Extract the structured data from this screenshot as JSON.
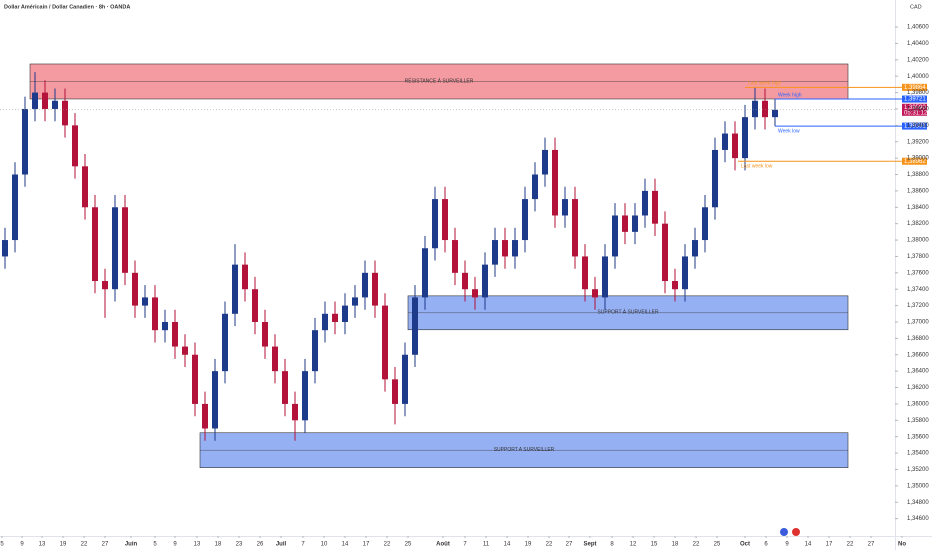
{
  "chart_data": {
    "type": "candlestick",
    "title": "Dollar Américain / Dollar Canadien · 8h · OANDA",
    "currency": "CAD",
    "xlim": [
      0,
      89.5
    ],
    "ylim": [
      1.344,
      1.4093
    ],
    "up_color": "#1e3a8a",
    "down_color": "#b3123a",
    "x": [
      0.5,
      1.5,
      2.5,
      3.5,
      4.5,
      5.5,
      6.5,
      7.5,
      8.5,
      9.5,
      10.5,
      11.5,
      12.5,
      13.5,
      14.5,
      15.5,
      16.5,
      17.5,
      18.5,
      19.5,
      20.5,
      21.5,
      22.5,
      23.5,
      24.5,
      25.5,
      26.5,
      27.5,
      28.5,
      29.5,
      30.5,
      31.5,
      32.5,
      33.5,
      34.5,
      35.5,
      36.5,
      37.5,
      38.5,
      39.5,
      40.5,
      41.5,
      42.5,
      43.5,
      44.5,
      45.5,
      46.5,
      47.5,
      48.5,
      49.5,
      50.5,
      51.5,
      52.5,
      53.5,
      54.5,
      55.5,
      56.5,
      57.5,
      58.5,
      59.5,
      60.5,
      61.5,
      62.5,
      63.5,
      64.5,
      65.5,
      66.5,
      67.5,
      68.5,
      69.5,
      70.5,
      71.5,
      72.5,
      73.5,
      74.5,
      75.5,
      76.5,
      77.5
    ],
    "open": [
      1.378,
      1.38,
      1.388,
      1.396,
      1.398,
      1.396,
      1.397,
      1.394,
      1.389,
      1.384,
      1.375,
      1.374,
      1.384,
      1.376,
      1.372,
      1.373,
      1.369,
      1.37,
      1.367,
      1.366,
      1.36,
      1.357,
      1.364,
      1.371,
      1.377,
      1.374,
      1.37,
      1.367,
      1.364,
      1.36,
      1.358,
      1.364,
      1.369,
      1.371,
      1.37,
      1.372,
      1.373,
      1.376,
      1.372,
      1.363,
      1.36,
      1.366,
      1.373,
      1.379,
      1.385,
      1.38,
      1.376,
      1.374,
      1.373,
      1.377,
      1.38,
      1.378,
      1.38,
      1.385,
      1.388,
      1.391,
      1.383,
      1.385,
      1.378,
      1.374,
      1.373,
      1.378,
      1.383,
      1.381,
      1.383,
      1.386,
      1.382,
      1.375,
      1.374,
      1.378,
      1.38,
      1.384,
      1.391,
      1.393,
      1.39,
      1.395,
      1.397,
      1.395
    ],
    "high": [
      1.3815,
      1.3895,
      1.3975,
      1.4005,
      1.3995,
      1.3985,
      1.3985,
      1.3955,
      1.3905,
      1.3855,
      1.3765,
      1.3855,
      1.3855,
      1.3775,
      1.3745,
      1.3745,
      1.3715,
      1.3715,
      1.3685,
      1.3675,
      1.3615,
      1.3655,
      1.3725,
      1.3795,
      1.3785,
      1.3755,
      1.3715,
      1.3685,
      1.3655,
      1.3615,
      1.3655,
      1.3705,
      1.3725,
      1.3725,
      1.3735,
      1.3745,
      1.3775,
      1.3775,
      1.3735,
      1.3645,
      1.3675,
      1.3745,
      1.3805,
      1.3865,
      1.3865,
      1.3815,
      1.3775,
      1.3755,
      1.3785,
      1.3815,
      1.3815,
      1.3815,
      1.3865,
      1.3895,
      1.3925,
      1.3925,
      1.3865,
      1.3865,
      1.3795,
      1.3755,
      1.3795,
      1.3845,
      1.3845,
      1.3845,
      1.3875,
      1.3875,
      1.3835,
      1.3765,
      1.3795,
      1.3815,
      1.3855,
      1.3925,
      1.3945,
      1.3945,
      1.3965,
      1.3986,
      1.3985,
      1.3972
    ],
    "low": [
      1.3765,
      1.3785,
      1.3865,
      1.3945,
      1.3945,
      1.3945,
      1.3925,
      1.3875,
      1.3825,
      1.3735,
      1.3705,
      1.3725,
      1.3745,
      1.3705,
      1.3705,
      1.3675,
      1.3675,
      1.3655,
      1.3645,
      1.3585,
      1.3555,
      1.3555,
      1.3625,
      1.3695,
      1.3725,
      1.3685,
      1.3655,
      1.3625,
      1.3585,
      1.3555,
      1.3565,
      1.3625,
      1.3675,
      1.3685,
      1.3685,
      1.3705,
      1.3715,
      1.3705,
      1.3615,
      1.3575,
      1.3585,
      1.3645,
      1.3715,
      1.3775,
      1.3785,
      1.3745,
      1.3725,
      1.3715,
      1.3715,
      1.3755,
      1.3765,
      1.3765,
      1.3785,
      1.3835,
      1.3865,
      1.3815,
      1.3815,
      1.3765,
      1.3725,
      1.3715,
      1.3715,
      1.3765,
      1.3795,
      1.3795,
      1.3815,
      1.3805,
      1.3735,
      1.3725,
      1.3725,
      1.3765,
      1.3785,
      1.3825,
      1.3895,
      1.3885,
      1.3885,
      1.3935,
      1.3935,
      1.3939
    ],
    "close": [
      1.38,
      1.388,
      1.396,
      1.398,
      1.396,
      1.397,
      1.394,
      1.389,
      1.384,
      1.375,
      1.374,
      1.384,
      1.376,
      1.372,
      1.373,
      1.369,
      1.37,
      1.367,
      1.366,
      1.36,
      1.357,
      1.364,
      1.371,
      1.377,
      1.374,
      1.37,
      1.367,
      1.364,
      1.36,
      1.358,
      1.364,
      1.369,
      1.371,
      1.37,
      1.372,
      1.373,
      1.376,
      1.372,
      1.363,
      1.36,
      1.366,
      1.373,
      1.379,
      1.385,
      1.38,
      1.376,
      1.374,
      1.373,
      1.377,
      1.38,
      1.378,
      1.38,
      1.385,
      1.388,
      1.391,
      1.383,
      1.385,
      1.378,
      1.374,
      1.373,
      1.378,
      1.383,
      1.381,
      1.383,
      1.386,
      1.382,
      1.375,
      1.374,
      1.378,
      1.38,
      1.384,
      1.391,
      1.393,
      1.39,
      1.395,
      1.397,
      1.395,
      1.3959
    ],
    "zones": [
      {
        "label": "RÉSISTANCE À SURVEILLER",
        "x": [
          3.0,
          84.8
        ],
        "y": [
          1.39722,
          1.40149
        ],
        "color": "#f0707a"
      },
      {
        "label": "SUPPORT À SURVEILLER",
        "x": [
          40.8,
          84.8
        ],
        "y": [
          1.36905,
          1.37319
        ],
        "color": "#6a8ef0"
      },
      {
        "label": "SUPPORT A SURVEILLER",
        "x": [
          20.0,
          84.8
        ],
        "y": [
          1.35222,
          1.35648
        ],
        "color": "#6a8ef0"
      }
    ],
    "levels": [
      {
        "name": "Last week high",
        "value": 1.39864,
        "label": "1,39864",
        "x": 74.5,
        "color": "#f7931a"
      },
      {
        "name": "Week high",
        "value": 1.39721,
        "label": "1,39721",
        "x": 77.5,
        "color": "#2962ff"
      },
      {
        "name": "Week low",
        "value": 1.39391,
        "label": "1,39391",
        "x": 77.5,
        "color": "#2962ff"
      },
      {
        "name": "Last week low",
        "value": 1.38962,
        "label": "1,38962",
        "x": 73.8,
        "color": "#f7931a"
      }
    ],
    "last_price": {
      "value": 1.3959,
      "label": "1,39590",
      "countdown": "05:31:12",
      "color": "#c2185b"
    },
    "yticks": [
      {
        "value": 1.346,
        "label": "1,34600"
      },
      {
        "value": 1.348,
        "label": "1,34800"
      },
      {
        "value": 1.35,
        "label": "1,35000"
      },
      {
        "value": 1.352,
        "label": "1,35200"
      },
      {
        "value": 1.354,
        "label": "1,35400"
      },
      {
        "value": 1.356,
        "label": "1,35600"
      },
      {
        "value": 1.358,
        "label": "1,35800"
      },
      {
        "value": 1.36,
        "label": "1,36000"
      },
      {
        "value": 1.362,
        "label": "1,36200"
      },
      {
        "value": 1.364,
        "label": "1,36400"
      },
      {
        "value": 1.366,
        "label": "1,36600"
      },
      {
        "value": 1.368,
        "label": "1,36800"
      },
      {
        "value": 1.37,
        "label": "1,37000"
      },
      {
        "value": 1.372,
        "label": "1,37200"
      },
      {
        "value": 1.374,
        "label": "1,37400"
      },
      {
        "value": 1.376,
        "label": "1,37600"
      },
      {
        "value": 1.378,
        "label": "1,37800"
      },
      {
        "value": 1.38,
        "label": "1,38000"
      },
      {
        "value": 1.382,
        "label": "1,38200"
      },
      {
        "value": 1.384,
        "label": "1,38400"
      },
      {
        "value": 1.386,
        "label": "1,38600"
      },
      {
        "value": 1.388,
        "label": "1,38800"
      },
      {
        "value": 1.39,
        "label": "1,39000"
      },
      {
        "value": 1.392,
        "label": "1,39200"
      },
      {
        "value": 1.394,
        "label": "1,39400"
      },
      {
        "value": 1.396,
        "label": "1,39600"
      },
      {
        "value": 1.398,
        "label": "1,39800"
      },
      {
        "value": 1.4,
        "label": "1,40000"
      },
      {
        "value": 1.402,
        "label": "1,40200"
      },
      {
        "value": 1.404,
        "label": "1,40400"
      },
      {
        "value": 1.406,
        "label": "1,40600"
      }
    ],
    "xticks": [
      {
        "value": 0.2,
        "label": "5"
      },
      {
        "value": 2.2,
        "label": "9"
      },
      {
        "value": 4.2,
        "label": "13"
      },
      {
        "value": 6.3,
        "label": "19"
      },
      {
        "value": 8.4,
        "label": "22"
      },
      {
        "value": 10.5,
        "label": "27"
      },
      {
        "value": 13.1,
        "label": "Juin"
      },
      {
        "value": 15.5,
        "label": "5"
      },
      {
        "value": 17.5,
        "label": "9"
      },
      {
        "value": 19.7,
        "label": "13"
      },
      {
        "value": 21.8,
        "label": "18"
      },
      {
        "value": 23.9,
        "label": "23"
      },
      {
        "value": 26,
        "label": "26"
      },
      {
        "value": 28.1,
        "label": "Juil"
      },
      {
        "value": 30.3,
        "label": "7"
      },
      {
        "value": 32.4,
        "label": "10"
      },
      {
        "value": 34.5,
        "label": "14"
      },
      {
        "value": 36.6,
        "label": "17"
      },
      {
        "value": 38.7,
        "label": "22"
      },
      {
        "value": 40.8,
        "label": "25"
      },
      {
        "value": 44.3,
        "label": "Août"
      },
      {
        "value": 46.5,
        "label": "7"
      },
      {
        "value": 48.6,
        "label": "11"
      },
      {
        "value": 50.7,
        "label": "14"
      },
      {
        "value": 52.8,
        "label": "19"
      },
      {
        "value": 54.9,
        "label": "22"
      },
      {
        "value": 56.9,
        "label": "27"
      },
      {
        "value": 59,
        "label": "Sept"
      },
      {
        "value": 61.2,
        "label": "8"
      },
      {
        "value": 63.3,
        "label": "12"
      },
      {
        "value": 65.4,
        "label": "15"
      },
      {
        "value": 67.5,
        "label": "18"
      },
      {
        "value": 69.6,
        "label": "22"
      },
      {
        "value": 71.7,
        "label": "25"
      },
      {
        "value": 74.5,
        "label": "Oct"
      },
      {
        "value": 76.6,
        "label": "6"
      },
      {
        "value": 78.7,
        "label": "9"
      },
      {
        "value": 80.8,
        "label": "14"
      },
      {
        "value": 82.9,
        "label": "17"
      },
      {
        "value": 85,
        "label": "22"
      },
      {
        "value": 87.1,
        "label": "27"
      },
      {
        "value": 90.2,
        "label": "No"
      }
    ]
  }
}
